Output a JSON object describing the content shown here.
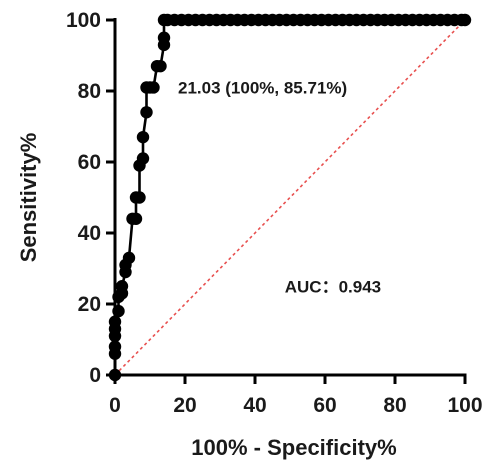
{
  "chart_data": {
    "type": "line",
    "xlabel": "100% - Specificity%",
    "ylabel": "Sensitivity%",
    "xlim": [
      0,
      100
    ],
    "ylim": [
      0,
      100
    ],
    "x_ticks": [
      "0",
      "20",
      "40",
      "60",
      "80",
      "100"
    ],
    "y_ticks": [
      "0",
      "20",
      "40",
      "60",
      "80",
      "100"
    ],
    "grid": false,
    "legend": "none",
    "annotations": {
      "cutoff": "21.03 (100%, 85.71%)",
      "auc": "AUC：0.943"
    },
    "colors": {
      "roc": "#000000",
      "reference": "#e8504f"
    },
    "series": [
      {
        "style": "line-markers",
        "x": [
          0,
          0,
          0,
          0,
          0,
          0,
          1,
          1,
          2,
          2,
          3,
          3,
          4,
          5,
          6,
          6,
          7,
          7,
          8,
          8,
          9,
          9,
          10,
          11,
          12,
          13,
          14,
          14,
          14,
          15,
          17,
          19,
          21,
          23,
          25,
          27,
          29,
          31,
          33,
          35,
          37,
          39,
          41,
          43,
          45,
          47,
          49,
          51,
          53,
          55,
          57,
          59,
          61,
          63,
          65,
          67,
          69,
          71,
          73,
          75,
          77,
          79,
          81,
          83,
          85,
          87,
          89,
          91,
          93,
          95,
          97,
          99,
          100
        ],
        "y": [
          0,
          6,
          8,
          11,
          13,
          15,
          18,
          22,
          23,
          25,
          29,
          31,
          33,
          44,
          44,
          50,
          50,
          59,
          61,
          67,
          74,
          81,
          81,
          81,
          87,
          87,
          93,
          95,
          100,
          100,
          100,
          100,
          100,
          100,
          100,
          100,
          100,
          100,
          100,
          100,
          100,
          100,
          100,
          100,
          100,
          100,
          100,
          100,
          100,
          100,
          100,
          100,
          100,
          100,
          100,
          100,
          100,
          100,
          100,
          100,
          100,
          100,
          100,
          100,
          100,
          100,
          100,
          100,
          100,
          100,
          100,
          100,
          100
        ]
      },
      {
        "style": "dashed-reference",
        "x": [
          0,
          100
        ],
        "y": [
          0,
          100
        ]
      }
    ]
  }
}
